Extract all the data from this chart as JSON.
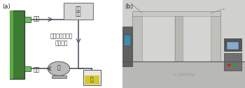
{
  "panel_a_label": "(a)",
  "panel_b_label": "(b)",
  "text_outlet": "出液",
  "text_inlet": "进液",
  "text_pump": "泵",
  "text_sulfur": "硫",
  "text_flow_control": "流量\n控制",
  "text_center": "硫极循环液流化\n钒硫电池",
  "bg_color": "#ffffff",
  "battery_color_top": "#5aaa45",
  "battery_color": "#3d7a32",
  "pipe_color": "#555566",
  "arrow_color": "#555566",
  "pump_color": "#bbbbbb",
  "sulfur_liquid_color": "#d4c832",
  "sulfur_jar_color": "#e8e8e0",
  "flow_ctrl_box_color": "#d8d8d8",
  "flow_ctrl_border": "#777777",
  "photo_bg_top": "#c8c8c4",
  "photo_bg_bottom": "#a0987c",
  "outlet_connector": "#6abf5e",
  "inlet_connector": "#6abf5e"
}
